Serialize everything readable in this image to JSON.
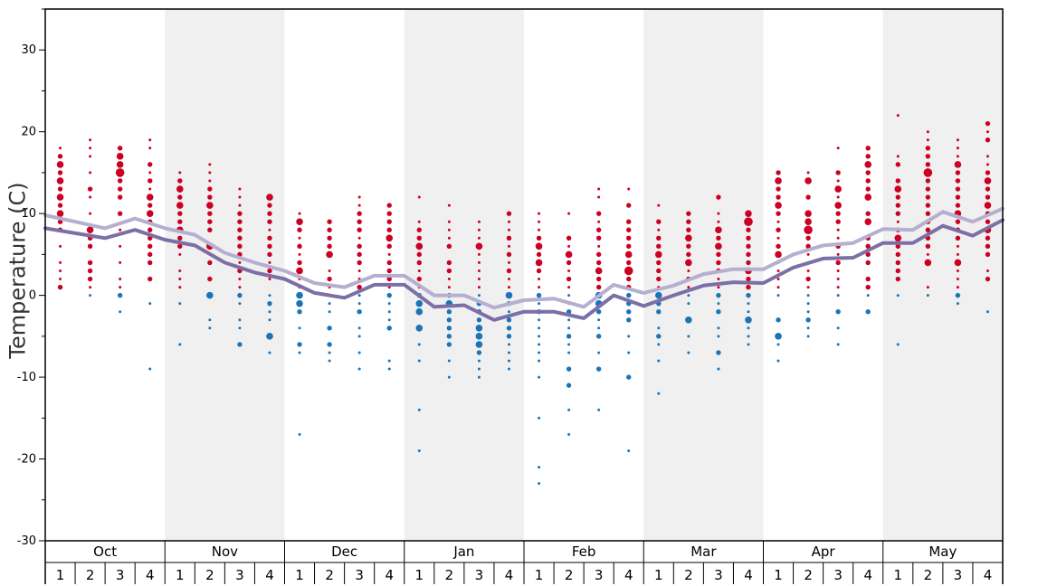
{
  "chart_data": {
    "type": "scatter",
    "ylabel": "Temperature (C)",
    "ylim": [
      -30,
      35
    ],
    "yticks": [
      -30,
      -20,
      -10,
      0,
      10,
      20,
      30
    ],
    "grid": false,
    "months": [
      "Oct",
      "Nov",
      "Dec",
      "Jan",
      "Feb",
      "Mar",
      "Apr",
      "May"
    ],
    "weeks": [
      "1",
      "2",
      "3",
      "4"
    ],
    "shaded_months": [
      false,
      true,
      false,
      true,
      false,
      true,
      false,
      true
    ],
    "colors": {
      "warm": "#cc0022",
      "cold": "#1a75b8",
      "line_dark": "#7d6fa6",
      "line_light": "#b5afd0",
      "shade": "#f0f0f0"
    },
    "series": [
      {
        "name": "",
        "kind": "line",
        "color": "#b5afd0",
        "values": [
          9.8,
          9.0,
          8.2,
          9.4,
          8.2,
          7.4,
          5.2,
          4.0,
          3.0,
          1.5,
          1.0,
          2.4,
          2.4,
          0.0,
          0.0,
          -1.5,
          -0.6,
          -0.4,
          -1.4,
          1.3,
          0.3,
          1.2,
          2.6,
          3.2,
          3.2,
          5.0,
          6.1,
          6.4,
          8.1,
          8.0,
          10.2,
          9.0,
          10.6
        ]
      },
      {
        "name": "",
        "kind": "line",
        "color": "#7d6fa6",
        "values": [
          8.2,
          7.6,
          7.0,
          8.0,
          6.8,
          6.1,
          4.0,
          2.8,
          2.0,
          0.3,
          -0.3,
          1.3,
          1.3,
          -1.4,
          -1.2,
          -3.0,
          -2.0,
          -2.0,
          -2.8,
          0.0,
          -1.3,
          0.0,
          1.2,
          1.6,
          1.5,
          3.4,
          4.5,
          4.6,
          6.4,
          6.4,
          8.5,
          7.3,
          9.2
        ]
      }
    ],
    "dots": [
      {
        "t": [
          18,
          17,
          16,
          15,
          14,
          13,
          12,
          11,
          10,
          9,
          8,
          6,
          4,
          3,
          2,
          1
        ],
        "s": [
          1,
          2,
          3,
          2,
          3,
          2,
          3,
          2,
          3,
          2,
          2,
          1,
          1,
          1,
          1,
          2
        ]
      },
      {
        "t": [
          19,
          18,
          17,
          15,
          13,
          12,
          10,
          8,
          7,
          6,
          4,
          3,
          2,
          1,
          0
        ],
        "s": [
          1,
          1,
          1,
          1,
          2,
          1,
          1,
          3,
          2,
          2,
          2,
          2,
          2,
          1,
          1
        ]
      },
      {
        "t": [
          18,
          17,
          16,
          15,
          14,
          13,
          12,
          10,
          8,
          6,
          4,
          2,
          1,
          0,
          -2
        ],
        "s": [
          2,
          3,
          3,
          4,
          2,
          2,
          2,
          2,
          1,
          1,
          1,
          1,
          1,
          2,
          1
        ]
      },
      {
        "t": [
          19,
          18,
          16,
          15,
          14,
          13,
          12,
          11,
          10,
          9,
          8,
          7,
          6,
          5,
          4,
          2,
          -1,
          -9
        ],
        "s": [
          1,
          1,
          2,
          1,
          2,
          1,
          3,
          2,
          3,
          2,
          2,
          2,
          2,
          2,
          2,
          2,
          1,
          1
        ]
      },
      {
        "t": [
          15,
          14,
          13,
          12,
          11,
          10,
          9,
          8,
          7,
          6,
          5,
          3,
          2,
          1,
          -1,
          -6
        ],
        "s": [
          1,
          2,
          3,
          2,
          3,
          2,
          2,
          3,
          2,
          2,
          1,
          1,
          1,
          1,
          1,
          1
        ]
      },
      {
        "t": [
          16,
          15,
          14,
          13,
          12,
          11,
          10,
          9,
          8,
          6,
          4,
          2,
          0,
          -3,
          -4
        ],
        "s": [
          1,
          1,
          1,
          2,
          2,
          3,
          2,
          2,
          2,
          3,
          2,
          2,
          3,
          1,
          1
        ]
      },
      {
        "t": [
          13,
          12,
          11,
          10,
          9,
          8,
          7,
          6,
          5,
          4,
          3,
          2,
          1,
          0,
          -1,
          -3,
          -4,
          -6
        ],
        "s": [
          1,
          1,
          1,
          2,
          2,
          2,
          2,
          2,
          2,
          1,
          2,
          1,
          1,
          2,
          1,
          1,
          1,
          2
        ]
      },
      {
        "t": [
          12,
          11,
          10,
          9,
          8,
          7,
          6,
          5,
          4,
          3,
          2,
          0,
          -1,
          -2,
          -3,
          -5,
          -7
        ],
        "s": [
          3,
          2,
          2,
          2,
          1,
          2,
          2,
          2,
          1,
          2,
          1,
          1,
          2,
          1,
          1,
          3,
          1
        ]
      },
      {
        "t": [
          10,
          9,
          8,
          7,
          6,
          5,
          4,
          3,
          2,
          1,
          0,
          -1,
          -2,
          -4,
          -6,
          -7,
          -17
        ],
        "s": [
          1,
          3,
          2,
          1,
          2,
          1,
          2,
          3,
          1,
          1,
          3,
          3,
          2,
          1,
          2,
          1,
          1
        ]
      },
      {
        "t": [
          9,
          8,
          7,
          6,
          5,
          3,
          2,
          1,
          0,
          -1,
          -2,
          -4,
          -6,
          -7,
          -8
        ],
        "s": [
          2,
          2,
          2,
          2,
          3,
          1,
          2,
          1,
          1,
          1,
          1,
          2,
          2,
          1,
          1
        ]
      },
      {
        "t": [
          12,
          11,
          10,
          9,
          8,
          7,
          6,
          5,
          4,
          3,
          2,
          1,
          0,
          -1,
          -2,
          -4,
          -5,
          -7,
          -9
        ],
        "s": [
          1,
          1,
          2,
          2,
          2,
          1,
          2,
          2,
          2,
          1,
          1,
          2,
          1,
          1,
          2,
          1,
          1,
          1,
          1
        ]
      },
      {
        "t": [
          11,
          10,
          9,
          8,
          7,
          6,
          5,
          4,
          3,
          2,
          1,
          0,
          -1,
          -2,
          -3,
          -4,
          -8,
          -9
        ],
        "s": [
          2,
          2,
          2,
          2,
          3,
          2,
          1,
          2,
          2,
          2,
          1,
          2,
          1,
          1,
          1,
          2,
          1,
          1
        ]
      },
      {
        "t": [
          12,
          9,
          8,
          7,
          6,
          5,
          4,
          3,
          2,
          1,
          0,
          -1,
          -2,
          -4,
          -6,
          -8,
          -14,
          -19
        ],
        "s": [
          1,
          1,
          2,
          2,
          3,
          2,
          2,
          1,
          2,
          1,
          2,
          3,
          3,
          3,
          1,
          1,
          1,
          1
        ]
      },
      {
        "t": [
          11,
          9,
          8,
          7,
          6,
          4,
          3,
          2,
          1,
          0,
          -1,
          -2,
          -3,
          -4,
          -5,
          -6,
          -8,
          -10
        ],
        "s": [
          1,
          1,
          1,
          1,
          2,
          2,
          2,
          1,
          1,
          2,
          3,
          2,
          2,
          2,
          2,
          2,
          1,
          1
        ]
      },
      {
        "t": [
          9,
          8,
          7,
          6,
          5,
          4,
          3,
          2,
          1,
          0,
          -1,
          -2,
          -3,
          -4,
          -5,
          -6,
          -7,
          -8,
          -9,
          -10
        ],
        "s": [
          1,
          1,
          1,
          3,
          1,
          1,
          1,
          1,
          1,
          1,
          2,
          2,
          2,
          3,
          3,
          3,
          2,
          1,
          1,
          1
        ]
      },
      {
        "t": [
          10,
          9,
          8,
          7,
          6,
          5,
          4,
          3,
          2,
          1,
          0,
          -1,
          -2,
          -3,
          -4,
          -5,
          -6,
          -7,
          -8,
          -9
        ],
        "s": [
          2,
          1,
          1,
          2,
          1,
          2,
          1,
          2,
          1,
          1,
          3,
          2,
          1,
          2,
          2,
          2,
          1,
          1,
          1,
          1
        ]
      },
      {
        "t": [
          10,
          9,
          8,
          7,
          6,
          5,
          4,
          3,
          2,
          1,
          0,
          -1,
          -2,
          -3,
          -4,
          -5,
          -6,
          -7,
          -8,
          -10,
          -15,
          -21,
          -23
        ],
        "s": [
          1,
          1,
          1,
          2,
          3,
          2,
          3,
          2,
          1,
          1,
          2,
          1,
          2,
          1,
          1,
          1,
          1,
          1,
          1,
          1,
          1,
          1,
          1
        ]
      },
      {
        "t": [
          10,
          7,
          6,
          5,
          4,
          3,
          2,
          1,
          0,
          -1,
          -2,
          -3,
          -4,
          -5,
          -6,
          -7,
          -9,
          -11,
          -14,
          -17
        ],
        "s": [
          1,
          2,
          1,
          3,
          2,
          1,
          2,
          1,
          1,
          1,
          2,
          1,
          1,
          2,
          1,
          1,
          2,
          2,
          1,
          1
        ]
      },
      {
        "t": [
          13,
          12,
          10,
          9,
          8,
          7,
          6,
          5,
          4,
          3,
          2,
          1,
          0,
          -1,
          -2,
          -3,
          -4,
          -5,
          -7,
          -9,
          -14
        ],
        "s": [
          1,
          1,
          2,
          1,
          2,
          2,
          1,
          2,
          2,
          3,
          2,
          2,
          3,
          3,
          2,
          1,
          1,
          2,
          1,
          2,
          1
        ]
      },
      {
        "t": [
          13,
          11,
          9,
          8,
          7,
          6,
          5,
          4,
          3,
          2,
          1,
          0,
          -1,
          -2,
          -3,
          -5,
          -7,
          -10,
          -19
        ],
        "s": [
          1,
          2,
          2,
          2,
          2,
          2,
          3,
          2,
          4,
          2,
          2,
          2,
          2,
          2,
          2,
          1,
          1,
          2,
          1
        ]
      },
      {
        "t": [
          11,
          9,
          8,
          7,
          6,
          5,
          4,
          3,
          2,
          1,
          0,
          -1,
          -2,
          -4,
          -5,
          -6,
          -8,
          -12
        ],
        "s": [
          1,
          2,
          1,
          2,
          2,
          3,
          2,
          2,
          2,
          1,
          3,
          2,
          2,
          1,
          2,
          1,
          1,
          1
        ]
      },
      {
        "t": [
          10,
          9,
          8,
          7,
          6,
          5,
          4,
          3,
          2,
          1,
          0,
          -1,
          -3,
          -5,
          -7
        ],
        "s": [
          2,
          2,
          2,
          3,
          2,
          2,
          3,
          1,
          2,
          1,
          1,
          1,
          3,
          1,
          1
        ]
      },
      {
        "t": [
          12,
          10,
          9,
          8,
          7,
          6,
          5,
          4,
          3,
          2,
          1,
          0,
          -1,
          -2,
          -4,
          -5,
          -7,
          -9
        ],
        "s": [
          2,
          1,
          1,
          3,
          2,
          3,
          2,
          2,
          2,
          1,
          1,
          2,
          1,
          2,
          1,
          1,
          2,
          1
        ]
      },
      {
        "t": [
          10,
          9,
          8,
          7,
          6,
          5,
          4,
          3,
          2,
          1,
          0,
          -1,
          -2,
          -3,
          -4,
          -5,
          -6
        ],
        "s": [
          3,
          4,
          2,
          2,
          2,
          2,
          2,
          3,
          2,
          2,
          2,
          1,
          1,
          3,
          1,
          1,
          1
        ]
      },
      {
        "t": [
          15,
          14,
          13,
          12,
          11,
          10,
          9,
          8,
          7,
          6,
          5,
          4,
          3,
          2,
          1,
          0,
          -3,
          -5,
          -6,
          -8
        ],
        "s": [
          2,
          3,
          2,
          2,
          3,
          2,
          1,
          2,
          1,
          2,
          3,
          1,
          1,
          1,
          1,
          1,
          2,
          3,
          1,
          1
        ]
      },
      {
        "t": [
          15,
          14,
          12,
          10,
          9,
          8,
          7,
          6,
          5,
          4,
          3,
          2,
          1,
          0,
          -1,
          -2,
          -3,
          -4,
          -5
        ],
        "s": [
          1,
          3,
          2,
          3,
          3,
          4,
          2,
          2,
          1,
          1,
          1,
          2,
          1,
          1,
          1,
          1,
          2,
          1,
          1
        ]
      },
      {
        "t": [
          18,
          15,
          14,
          13,
          12,
          11,
          10,
          9,
          8,
          7,
          6,
          5,
          4,
          3,
          2,
          1,
          0,
          -2,
          -4,
          -6
        ],
        "s": [
          1,
          2,
          1,
          3,
          1,
          3,
          2,
          2,
          1,
          1,
          2,
          1,
          2,
          1,
          1,
          1,
          1,
          2,
          1,
          1
        ]
      },
      {
        "t": [
          18,
          17,
          16,
          15,
          14,
          13,
          12,
          10,
          9,
          7,
          6,
          5,
          4,
          2,
          1,
          0,
          -2
        ],
        "s": [
          2,
          2,
          3,
          2,
          2,
          2,
          3,
          2,
          3,
          2,
          2,
          2,
          2,
          2,
          2,
          1,
          2
        ]
      },
      {
        "t": [
          22,
          17,
          16,
          14,
          13,
          12,
          11,
          10,
          9,
          8,
          7,
          6,
          5,
          4,
          3,
          2,
          0,
          -6
        ],
        "s": [
          1,
          1,
          2,
          2,
          3,
          2,
          2,
          2,
          1,
          2,
          3,
          2,
          2,
          2,
          2,
          2,
          1,
          1
        ]
      },
      {
        "t": [
          20,
          19,
          18,
          17,
          16,
          15,
          14,
          13,
          12,
          11,
          10,
          9,
          8,
          7,
          6,
          5,
          4,
          1,
          0
        ],
        "s": [
          1,
          1,
          2,
          2,
          2,
          4,
          2,
          2,
          2,
          2,
          2,
          2,
          2,
          2,
          2,
          1,
          3,
          1,
          1
        ]
      },
      {
        "t": [
          19,
          18,
          17,
          16,
          15,
          14,
          13,
          12,
          11,
          10,
          9,
          8,
          7,
          6,
          5,
          4,
          3,
          2,
          1,
          0,
          -1
        ],
        "s": [
          1,
          1,
          1,
          3,
          2,
          2,
          2,
          2,
          2,
          3,
          2,
          2,
          2,
          1,
          1,
          3,
          1,
          1,
          1,
          2,
          1
        ]
      },
      {
        "t": [
          21,
          20,
          19,
          17,
          16,
          15,
          14,
          13,
          12,
          11,
          10,
          9,
          8,
          7,
          6,
          5,
          3,
          2,
          -2
        ],
        "s": [
          2,
          1,
          2,
          1,
          1,
          2,
          3,
          2,
          2,
          3,
          2,
          2,
          3,
          2,
          2,
          2,
          1,
          2,
          1
        ]
      }
    ]
  }
}
